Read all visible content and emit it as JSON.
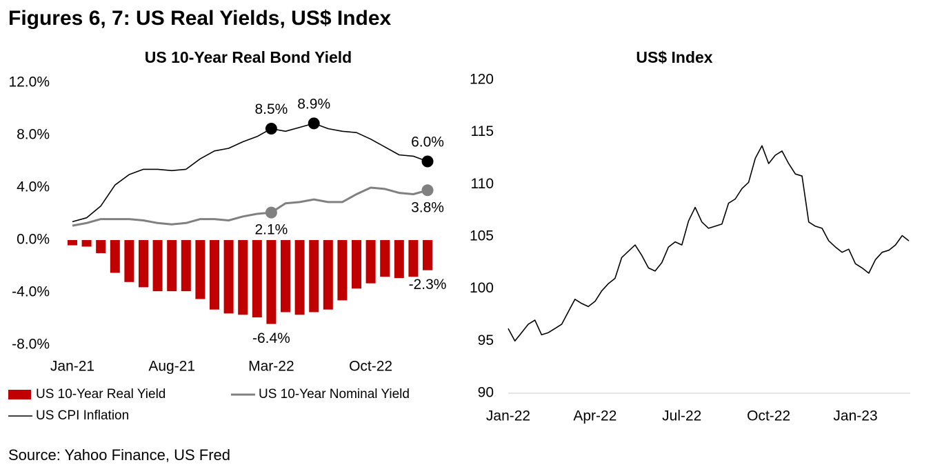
{
  "title": "Figures 6, 7: US Real Yields, US$ Index",
  "source": "Source: Yahoo Finance, US Fred",
  "chart_data": [
    {
      "type": "bar",
      "title": "US 10-Year Real Bond Yield",
      "categories": [
        "Jan-21",
        null,
        null,
        null,
        null,
        null,
        null,
        "Aug-21",
        null,
        null,
        null,
        null,
        null,
        null,
        "Mar-22",
        null,
        null,
        null,
        null,
        null,
        null,
        "Oct-22",
        null,
        null,
        null,
        null
      ],
      "ylim": [
        -8,
        12
      ],
      "yticks": [
        {
          "value": 12,
          "label": "12.0%"
        },
        {
          "value": 8,
          "label": "8.0%"
        },
        {
          "value": 4,
          "label": "4.0%"
        },
        {
          "value": 0,
          "label": "0.0%"
        },
        {
          "value": -4,
          "label": "-4.0%"
        },
        {
          "value": -8,
          "label": "-8.0%"
        }
      ],
      "legend": "bottom",
      "series": [
        {
          "name": "US 10-Year Real Yield",
          "color": "#c00000",
          "values": [
            -0.4,
            -0.5,
            -1.0,
            -2.5,
            -3.2,
            -3.6,
            -3.9,
            -3.9,
            -3.9,
            -4.5,
            -5.3,
            -5.6,
            -5.7,
            -5.9,
            -6.4,
            -5.5,
            -5.7,
            -5.5,
            -5.3,
            -4.6,
            -3.7,
            -3.3,
            -2.8,
            -2.9,
            -2.8,
            -2.3
          ],
          "value_labels": [
            null,
            null,
            null,
            null,
            null,
            null,
            null,
            null,
            null,
            null,
            null,
            null,
            null,
            null,
            "-6.4%",
            null,
            null,
            null,
            null,
            null,
            null,
            null,
            null,
            null,
            null,
            "-2.3%"
          ]
        },
        {
          "name": "US 10-Year Nominal Yield",
          "color": "#808080",
          "type": "line",
          "values": [
            1.1,
            1.3,
            1.6,
            1.6,
            1.6,
            1.5,
            1.3,
            1.2,
            1.3,
            1.6,
            1.6,
            1.5,
            1.8,
            2.0,
            2.1,
            2.8,
            2.9,
            3.1,
            2.9,
            2.9,
            3.5,
            4.0,
            3.9,
            3.6,
            3.5,
            3.8
          ],
          "value_labels": [
            null,
            null,
            null,
            null,
            null,
            null,
            null,
            null,
            null,
            null,
            null,
            null,
            null,
            null,
            "2.1%",
            null,
            null,
            null,
            null,
            null,
            null,
            null,
            null,
            null,
            null,
            "3.8%"
          ]
        },
        {
          "name": "US CPI Inflation",
          "color": "#000000",
          "type": "line",
          "values": [
            1.4,
            1.7,
            2.6,
            4.2,
            5.0,
            5.4,
            5.4,
            5.3,
            5.4,
            6.2,
            6.8,
            7.0,
            7.5,
            7.9,
            8.5,
            8.3,
            8.6,
            8.9,
            8.5,
            8.3,
            8.2,
            7.7,
            7.1,
            6.5,
            6.4,
            6.0
          ],
          "value_labels": [
            null,
            null,
            null,
            null,
            null,
            null,
            null,
            null,
            null,
            null,
            null,
            null,
            null,
            null,
            "8.5%",
            null,
            null,
            "8.9%",
            null,
            null,
            null,
            null,
            null,
            null,
            null,
            "6.0%"
          ]
        }
      ]
    },
    {
      "type": "line",
      "title": "US$ Index",
      "color": "#000000",
      "categories": [
        "Jan-22",
        null,
        null,
        null,
        null,
        null,
        null,
        null,
        null,
        null,
        null,
        null,
        null,
        "Apr-22",
        null,
        null,
        null,
        null,
        null,
        null,
        null,
        null,
        null,
        null,
        null,
        null,
        "Jul-22",
        null,
        null,
        null,
        null,
        null,
        null,
        null,
        null,
        null,
        null,
        null,
        null,
        "Oct-22",
        null,
        null,
        null,
        null,
        null,
        null,
        null,
        null,
        null,
        null,
        null,
        null,
        "Jan-23",
        null,
        null,
        null,
        null,
        null,
        null,
        null,
        null
      ],
      "values": [
        96.2,
        95.0,
        95.8,
        96.6,
        97.0,
        95.6,
        95.8,
        96.2,
        96.6,
        97.8,
        99.0,
        98.6,
        98.3,
        98.8,
        99.8,
        100.5,
        101.0,
        103.0,
        103.6,
        104.2,
        103.2,
        102.0,
        101.7,
        102.5,
        104.0,
        104.5,
        104.2,
        106.5,
        107.8,
        106.4,
        105.8,
        106.0,
        106.2,
        108.2,
        108.6,
        109.6,
        110.2,
        112.5,
        113.7,
        112.0,
        112.8,
        113.2,
        112.0,
        111.0,
        110.8,
        106.4,
        106.0,
        105.8,
        104.6,
        104.0,
        103.5,
        103.8,
        102.4,
        102.0,
        101.5,
        102.8,
        103.5,
        103.7,
        104.2,
        105.1,
        104.6
      ],
      "ylim": [
        90,
        120
      ],
      "yticks": [
        90,
        95,
        100,
        105,
        110,
        115,
        120
      ]
    }
  ]
}
